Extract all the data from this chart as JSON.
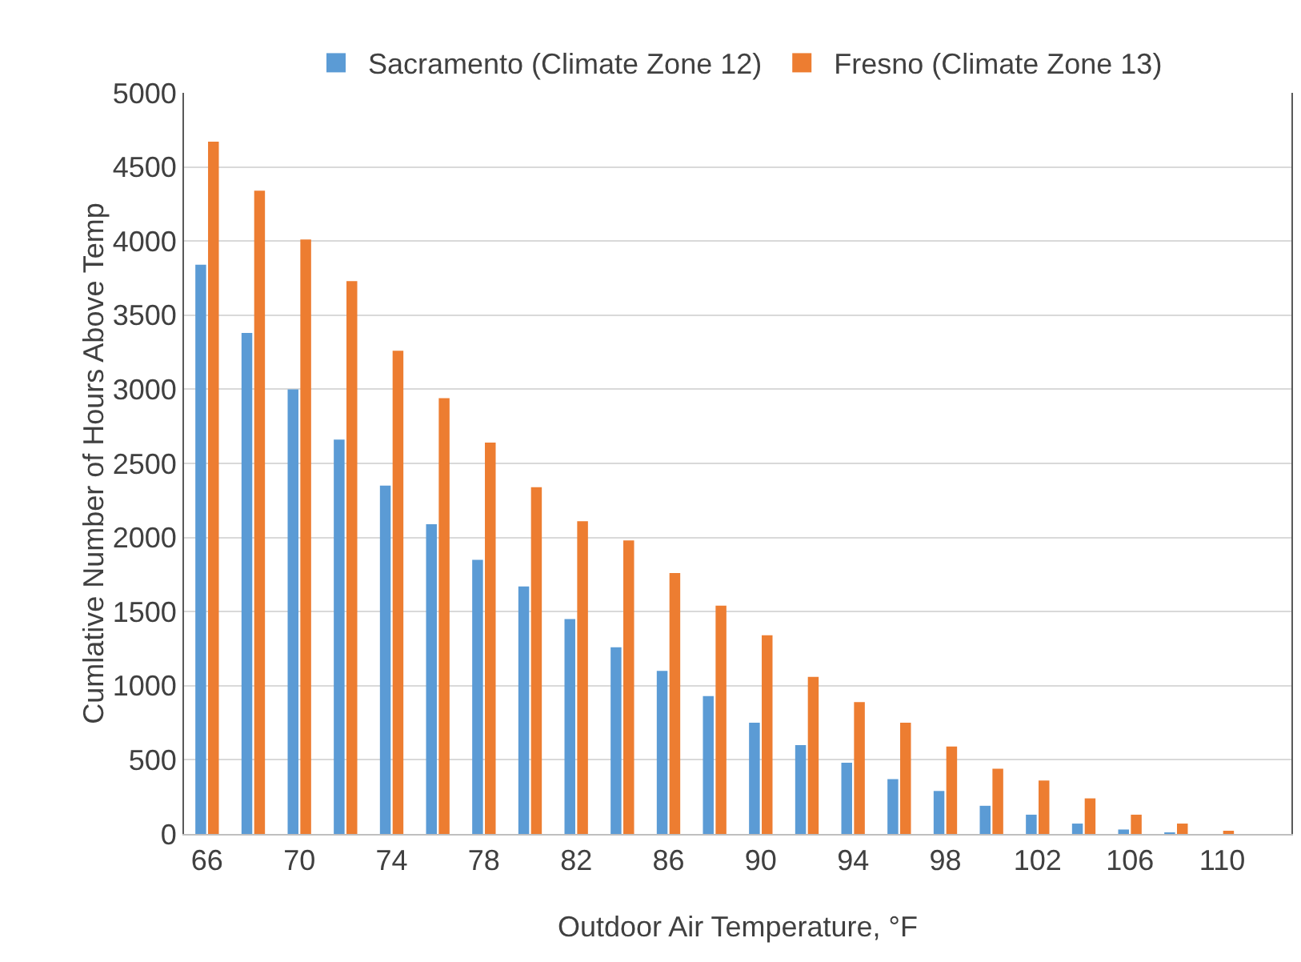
{
  "chart_data": {
    "type": "bar",
    "xlabel": "Outdoor Air Temperature, °F",
    "ylabel": "Cumlative Number of Hours Above Temp",
    "categories": [
      "66",
      null,
      "70",
      null,
      "74",
      null,
      "78",
      null,
      "82",
      null,
      "86",
      null,
      "90",
      null,
      "94",
      null,
      "98",
      null,
      "102",
      null,
      "106",
      null,
      "110",
      null
    ],
    "series": [
      {
        "name": "Sacramento (Climate Zone 12)",
        "color": "#5b9bd5",
        "values": [
          3840,
          3380,
          3000,
          2660,
          2350,
          2090,
          1850,
          1670,
          1450,
          1260,
          1100,
          930,
          750,
          600,
          480,
          370,
          290,
          190,
          130,
          70,
          30,
          10,
          0,
          0
        ]
      },
      {
        "name": "Fresno (Climate Zone 13)",
        "color": "#ed7d31",
        "values": [
          4670,
          4340,
          4010,
          3730,
          3260,
          2940,
          2640,
          2340,
          2110,
          1980,
          1760,
          1540,
          1340,
          1060,
          890,
          750,
          590,
          440,
          360,
          240,
          130,
          70,
          20,
          0
        ]
      }
    ],
    "ylim": [
      0,
      5000
    ],
    "yticks": [
      0,
      500,
      1000,
      1500,
      2000,
      2500,
      3000,
      3500,
      4000,
      4500,
      5000
    ],
    "grid": "y",
    "legend": "top"
  }
}
